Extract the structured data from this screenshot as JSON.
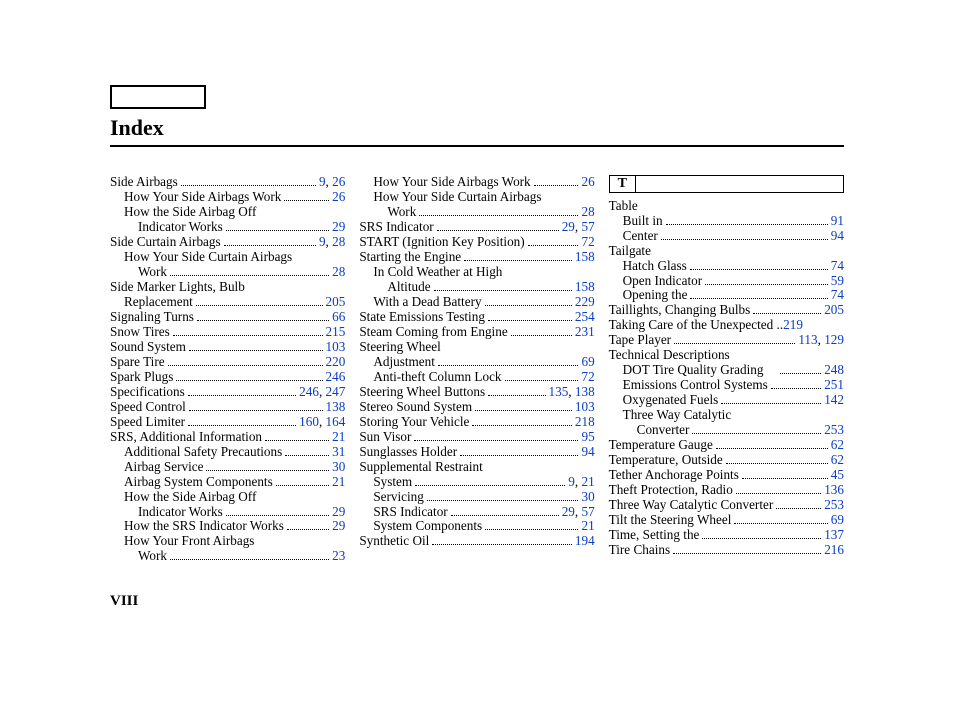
{
  "title": "Index",
  "folio": "VIII",
  "section_letter": "T",
  "page_color": "#0a3cc4",
  "columns": [
    [
      {
        "label": "Side Airbags",
        "pages": [
          "9",
          "26"
        ],
        "indent": 0
      },
      {
        "label": "How Your Side Airbags Work",
        "pages": [
          "26"
        ],
        "indent": 1
      },
      {
        "label": "How the Side Airbag Off",
        "cont": true,
        "indent": 1
      },
      {
        "label": "Indicator Works",
        "pages": [
          "29"
        ],
        "indent": 2
      },
      {
        "label": "Side Curtain Airbags",
        "pages": [
          "9",
          "28"
        ],
        "indent": 0
      },
      {
        "label": "How Your Side Curtain Airbags",
        "cont": true,
        "indent": 1
      },
      {
        "label": "Work",
        "pages": [
          "28"
        ],
        "indent": 2
      },
      {
        "label": "Side Marker Lights, Bulb",
        "cont": true,
        "indent": 0
      },
      {
        "label": "Replacement",
        "pages": [
          "205"
        ],
        "indent": 1
      },
      {
        "label": "Signaling Turns",
        "pages": [
          "66"
        ],
        "indent": 0
      },
      {
        "label": "Snow Tires",
        "pages": [
          "215"
        ],
        "indent": 0
      },
      {
        "label": "Sound System",
        "pages": [
          "103"
        ],
        "indent": 0
      },
      {
        "label": "Spare Tire",
        "pages": [
          "220"
        ],
        "indent": 0
      },
      {
        "label": "Spark Plugs",
        "pages": [
          "246"
        ],
        "indent": 0
      },
      {
        "label": "Specifications",
        "pages": [
          "246",
          "247"
        ],
        "indent": 0
      },
      {
        "label": "Speed Control",
        "pages": [
          "138"
        ],
        "indent": 0
      },
      {
        "label": "Speed Limiter",
        "pages": [
          "160",
          "164"
        ],
        "indent": 0
      },
      {
        "label": "SRS, Additional Information",
        "pages": [
          "21"
        ],
        "indent": 0
      },
      {
        "label": "Additional Safety Precautions",
        "pages": [
          "31"
        ],
        "indent": 1
      },
      {
        "label": "Airbag Service",
        "pages": [
          "30"
        ],
        "indent": 1
      },
      {
        "label": "Airbag System Components",
        "pages": [
          "21"
        ],
        "indent": 1
      },
      {
        "label": "How the Side Airbag Off",
        "cont": true,
        "indent": 1
      },
      {
        "label": "Indicator Works",
        "pages": [
          "29"
        ],
        "indent": 2
      },
      {
        "label": "How the SRS Indicator Works",
        "pages": [
          "29"
        ],
        "indent": 1
      },
      {
        "label": "How Your Front Airbags",
        "cont": true,
        "indent": 1
      },
      {
        "label": "Work",
        "pages": [
          "23"
        ],
        "indent": 2
      }
    ],
    [
      {
        "label": "How Your Side Airbags Work",
        "pages": [
          "26"
        ],
        "indent": 1
      },
      {
        "label": "How Your Side Curtain Airbags",
        "cont": true,
        "indent": 1
      },
      {
        "label": "Work",
        "pages": [
          "28"
        ],
        "indent": 2
      },
      {
        "label": "SRS Indicator",
        "pages": [
          "29",
          "57"
        ],
        "indent": 0
      },
      {
        "label": "START (Ignition Key Position)",
        "pages": [
          "72"
        ],
        "indent": 0
      },
      {
        "label": "Starting the Engine",
        "pages": [
          "158"
        ],
        "indent": 0
      },
      {
        "label": "In Cold Weather at High",
        "cont": true,
        "indent": 1
      },
      {
        "label": "Altitude",
        "pages": [
          "158"
        ],
        "indent": 2
      },
      {
        "label": "With a Dead Battery",
        "pages": [
          "229"
        ],
        "indent": 1
      },
      {
        "label": "State Emissions Testing",
        "pages": [
          "254"
        ],
        "indent": 0
      },
      {
        "label": "Steam Coming from Engine",
        "pages": [
          "231"
        ],
        "indent": 0
      },
      {
        "label": "Steering Wheel",
        "cont": true,
        "indent": 0
      },
      {
        "label": "Adjustment",
        "pages": [
          "69"
        ],
        "indent": 1
      },
      {
        "label": "Anti-theft Column Lock",
        "pages": [
          "72"
        ],
        "indent": 1
      },
      {
        "label": "Steering Wheel Buttons",
        "pages": [
          "135",
          "138"
        ],
        "indent": 0
      },
      {
        "label": "Stereo Sound System",
        "pages": [
          "103"
        ],
        "indent": 0
      },
      {
        "label": "Storing Your Vehicle",
        "pages": [
          "218"
        ],
        "indent": 0
      },
      {
        "label": "Sun Visor",
        "pages": [
          "95"
        ],
        "indent": 0
      },
      {
        "label": "Sunglasses Holder",
        "pages": [
          "94"
        ],
        "indent": 0
      },
      {
        "label": "Supplemental Restraint",
        "cont": true,
        "indent": 0
      },
      {
        "label": "System",
        "pages": [
          "9",
          "21"
        ],
        "indent": 1
      },
      {
        "label": "Servicing",
        "pages": [
          "30"
        ],
        "indent": 1
      },
      {
        "label": "SRS Indicator",
        "pages": [
          "29",
          "57"
        ],
        "indent": 1
      },
      {
        "label": "System Components",
        "pages": [
          "21"
        ],
        "indent": 1
      },
      {
        "label": "Synthetic Oil",
        "pages": [
          "194"
        ],
        "indent": 0
      }
    ],
    [
      {
        "section": true
      },
      {
        "label": "Table",
        "cont": true,
        "indent": 0
      },
      {
        "label": "Built in",
        "pages": [
          "91"
        ],
        "indent": 1
      },
      {
        "label": "Center",
        "pages": [
          "94"
        ],
        "indent": 1
      },
      {
        "label": "Tailgate",
        "cont": true,
        "indent": 0
      },
      {
        "label": "Hatch Glass",
        "pages": [
          "74"
        ],
        "indent": 1
      },
      {
        "label": "Open Indicator",
        "pages": [
          "59"
        ],
        "indent": 1
      },
      {
        "label": "Opening the",
        "pages": [
          "74"
        ],
        "indent": 1
      },
      {
        "label": "Taillights, Changing Bulbs",
        "pages": [
          "205"
        ],
        "indent": 0
      },
      {
        "label": "Taking Care of the Unexpected",
        "pages": [
          "219"
        ],
        "indent": 0,
        "leader_short": true
      },
      {
        "label": "Tape Player",
        "pages": [
          "113",
          "129"
        ],
        "indent": 0
      },
      {
        "label": "Technical Descriptions",
        "cont": true,
        "indent": 0
      },
      {
        "label": "DOT Tire Quality Grading",
        "pages": [
          "248"
        ],
        "indent": 1,
        "gap": true
      },
      {
        "label": "Emissions Control Systems",
        "pages": [
          "251"
        ],
        "indent": 1
      },
      {
        "label": "Oxygenated Fuels",
        "pages": [
          "142"
        ],
        "indent": 1
      },
      {
        "label": "Three Way Catalytic",
        "cont": true,
        "indent": 1
      },
      {
        "label": "Converter",
        "pages": [
          "253"
        ],
        "indent": 2
      },
      {
        "label": "Temperature Gauge",
        "pages": [
          "62"
        ],
        "indent": 0
      },
      {
        "label": "Temperature, Outside",
        "pages": [
          "62"
        ],
        "indent": 0
      },
      {
        "label": "Tether Anchorage Points",
        "pages": [
          "45"
        ],
        "indent": 0
      },
      {
        "label": "Theft Protection, Radio",
        "pages": [
          "136"
        ],
        "indent": 0
      },
      {
        "label": "Three Way Catalytic Converter",
        "pages": [
          "253"
        ],
        "indent": 0
      },
      {
        "label": "Tilt the Steering Wheel",
        "pages": [
          "69"
        ],
        "indent": 0
      },
      {
        "label": "Time, Setting the",
        "pages": [
          "137"
        ],
        "indent": 0
      },
      {
        "label": "Tire Chains",
        "pages": [
          "216"
        ],
        "indent": 0
      }
    ]
  ]
}
